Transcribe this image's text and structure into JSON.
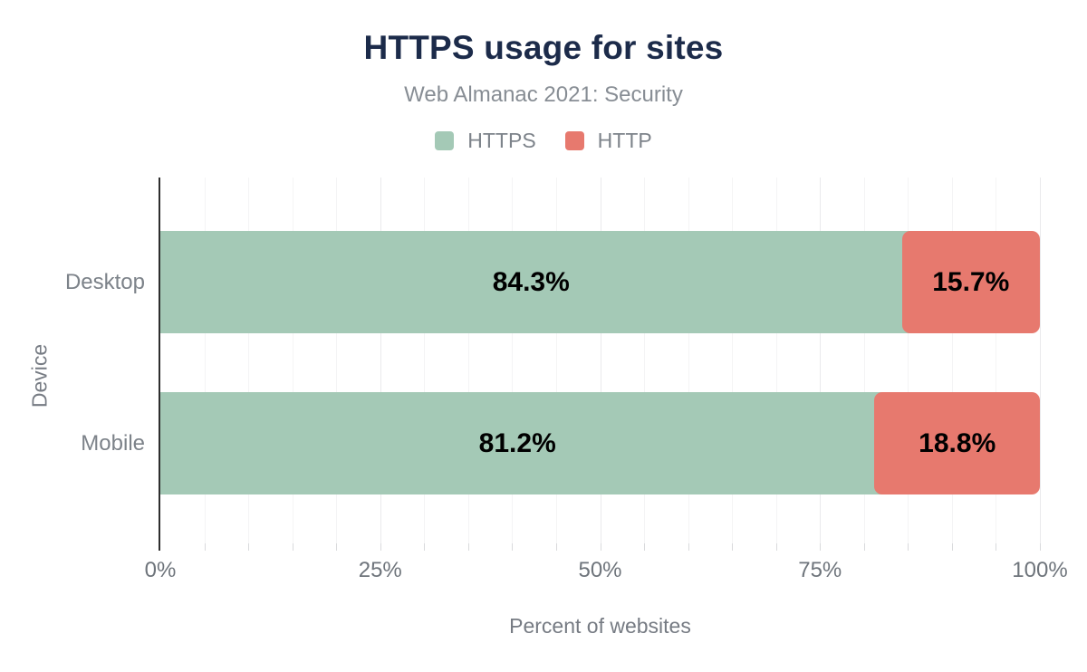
{
  "chart_data": {
    "type": "bar",
    "orientation": "horizontal",
    "stacked": true,
    "title": "HTTPS usage for sites",
    "subtitle": "Web Almanac 2021: Security",
    "xlabel": "Percent of websites",
    "ylabel": "Device",
    "categories": [
      "Desktop",
      "Mobile"
    ],
    "series": [
      {
        "name": "HTTPS",
        "color": "#a4c9b6",
        "values": [
          84.3,
          81.2
        ]
      },
      {
        "name": "HTTP",
        "color": "#e7796e",
        "values": [
          15.7,
          18.8
        ]
      }
    ],
    "value_labels": [
      [
        "84.3%",
        "15.7%"
      ],
      [
        "81.2%",
        "18.8%"
      ]
    ],
    "xlim": [
      0,
      100
    ],
    "x_ticks": [
      {
        "value": 0,
        "label": "0%"
      },
      {
        "value": 25,
        "label": "25%"
      },
      {
        "value": 50,
        "label": "50%"
      },
      {
        "value": 75,
        "label": "75%"
      },
      {
        "value": 100,
        "label": "100%"
      }
    ],
    "minor_grid_step": 5,
    "major_grid_step": 25,
    "grid": true,
    "legend_position": "top"
  },
  "colors": {
    "title_text": "#1c2b4a",
    "https_green": "#a4c9b6",
    "http_red": "#e7796e",
    "axis_line": "#2e2e2e"
  }
}
